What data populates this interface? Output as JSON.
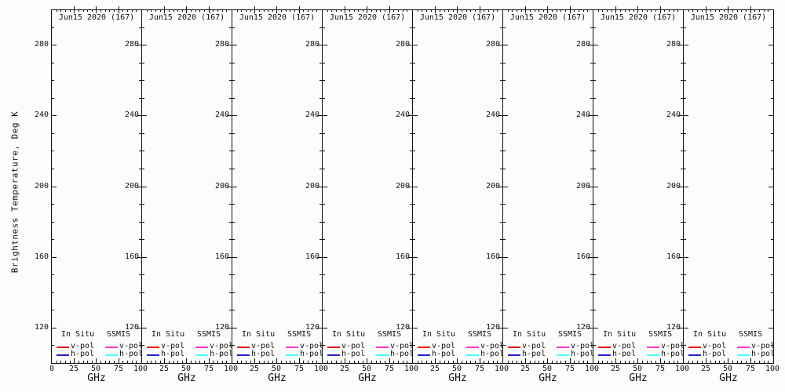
{
  "background": "#fcfcfa",
  "ylabel": "Brightness Temperature, Deg K",
  "chart_data": [
    {
      "type": "line",
      "title": "Jun15 2020 (167)",
      "xlabel": "GHz",
      "xlim": [
        0,
        100
      ],
      "ylim": [
        100,
        300
      ],
      "xticks": [
        0,
        25,
        50,
        75,
        100
      ],
      "yticks": [
        120,
        160,
        200,
        240,
        280
      ],
      "x_minor_step": 5,
      "y_minor_step": 10,
      "grid": false,
      "series": [],
      "legend": {
        "position": "bottom-inside",
        "columns": [
          {
            "header": "In Situ",
            "entries": [
              {
                "label": "v-pol",
                "color": "#ee1100"
              },
              {
                "label": "h-pol",
                "color": "#2222cc"
              }
            ]
          },
          {
            "header": "SSMIS",
            "entries": [
              {
                "label": "v-pol",
                "color": "#ff33cc"
              },
              {
                "label": "h-pol",
                "color": "#44ffff"
              }
            ]
          }
        ]
      }
    },
    {
      "type": "line",
      "title": "Jun15 2020 (167)",
      "xlabel": "GHz",
      "xlim": [
        0,
        100
      ],
      "ylim": [
        100,
        300
      ],
      "xticks": [
        0,
        25,
        50,
        75,
        100
      ],
      "yticks": [
        120,
        160,
        200,
        240,
        280
      ],
      "x_minor_step": 5,
      "y_minor_step": 10,
      "grid": false,
      "series": [],
      "legend": {
        "position": "bottom-inside",
        "columns": [
          {
            "header": "In Situ",
            "entries": [
              {
                "label": "v-pol",
                "color": "#ee1100"
              },
              {
                "label": "h-pol",
                "color": "#2222cc"
              }
            ]
          },
          {
            "header": "SSMIS",
            "entries": [
              {
                "label": "v-pol",
                "color": "#ff33cc"
              },
              {
                "label": "h-pol",
                "color": "#44ffff"
              }
            ]
          }
        ]
      }
    },
    {
      "type": "line",
      "title": "Jun15 2020 (167)",
      "xlabel": "GHz",
      "xlim": [
        0,
        100
      ],
      "ylim": [
        100,
        300
      ],
      "xticks": [
        0,
        25,
        50,
        75,
        100
      ],
      "yticks": [
        120,
        160,
        200,
        240,
        280
      ],
      "x_minor_step": 5,
      "y_minor_step": 10,
      "grid": false,
      "series": [],
      "legend": {
        "position": "bottom-inside",
        "columns": [
          {
            "header": "In Situ",
            "entries": [
              {
                "label": "v-pol",
                "color": "#ee1100"
              },
              {
                "label": "h-pol",
                "color": "#2222cc"
              }
            ]
          },
          {
            "header": "SSMIS",
            "entries": [
              {
                "label": "v-pol",
                "color": "#ff33cc"
              },
              {
                "label": "h-pol",
                "color": "#44ffff"
              }
            ]
          }
        ]
      }
    },
    {
      "type": "line",
      "title": "Jun15 2020 (167)",
      "xlabel": "GHz",
      "xlim": [
        0,
        100
      ],
      "ylim": [
        100,
        300
      ],
      "xticks": [
        0,
        25,
        50,
        75,
        100
      ],
      "yticks": [
        120,
        160,
        200,
        240,
        280
      ],
      "x_minor_step": 5,
      "y_minor_step": 10,
      "grid": false,
      "series": [],
      "legend": {
        "position": "bottom-inside",
        "columns": [
          {
            "header": "In Situ",
            "entries": [
              {
                "label": "v-pol",
                "color": "#ee1100"
              },
              {
                "label": "h-pol",
                "color": "#2222cc"
              }
            ]
          },
          {
            "header": "SSMIS",
            "entries": [
              {
                "label": "v-pol",
                "color": "#ff33cc"
              },
              {
                "label": "h-pol",
                "color": "#44ffff"
              }
            ]
          }
        ]
      }
    },
    {
      "type": "line",
      "title": "Jun15 2020 (167)",
      "xlabel": "GHz",
      "xlim": [
        0,
        100
      ],
      "ylim": [
        100,
        300
      ],
      "xticks": [
        0,
        25,
        50,
        75,
        100
      ],
      "yticks": [
        120,
        160,
        200,
        240,
        280
      ],
      "x_minor_step": 5,
      "y_minor_step": 10,
      "grid": false,
      "series": [],
      "legend": {
        "position": "bottom-inside",
        "columns": [
          {
            "header": "In Situ",
            "entries": [
              {
                "label": "v-pol",
                "color": "#ee1100"
              },
              {
                "label": "h-pol",
                "color": "#2222cc"
              }
            ]
          },
          {
            "header": "SSMIS",
            "entries": [
              {
                "label": "v-pol",
                "color": "#ff33cc"
              },
              {
                "label": "h-pol",
                "color": "#44ffff"
              }
            ]
          }
        ]
      }
    },
    {
      "type": "line",
      "title": "Jun15 2020 (167)",
      "xlabel": "GHz",
      "xlim": [
        0,
        100
      ],
      "ylim": [
        100,
        300
      ],
      "xticks": [
        0,
        25,
        50,
        75,
        100
      ],
      "yticks": [
        120,
        160,
        200,
        240,
        280
      ],
      "x_minor_step": 5,
      "y_minor_step": 10,
      "grid": false,
      "series": [],
      "legend": {
        "position": "bottom-inside",
        "columns": [
          {
            "header": "In Situ",
            "entries": [
              {
                "label": "v-pol",
                "color": "#ee1100"
              },
              {
                "label": "h-pol",
                "color": "#2222cc"
              }
            ]
          },
          {
            "header": "SSMIS",
            "entries": [
              {
                "label": "v-pol",
                "color": "#ff33cc"
              },
              {
                "label": "h-pol",
                "color": "#44ffff"
              }
            ]
          }
        ]
      }
    },
    {
      "type": "line",
      "title": "Jun15 2020 (167)",
      "xlabel": "GHz",
      "xlim": [
        0,
        100
      ],
      "ylim": [
        100,
        300
      ],
      "xticks": [
        0,
        25,
        50,
        75,
        100
      ],
      "yticks": [
        120,
        160,
        200,
        240,
        280
      ],
      "x_minor_step": 5,
      "y_minor_step": 10,
      "grid": false,
      "series": [],
      "legend": {
        "position": "bottom-inside",
        "columns": [
          {
            "header": "In Situ",
            "entries": [
              {
                "label": "v-pol",
                "color": "#ee1100"
              },
              {
                "label": "h-pol",
                "color": "#2222cc"
              }
            ]
          },
          {
            "header": "SSMIS",
            "entries": [
              {
                "label": "v-pol",
                "color": "#ff33cc"
              },
              {
                "label": "h-pol",
                "color": "#44ffff"
              }
            ]
          }
        ]
      }
    },
    {
      "type": "line",
      "title": "Jun15 2020 (167)",
      "xlabel": "GHz",
      "xlim": [
        0,
        100
      ],
      "ylim": [
        100,
        300
      ],
      "xticks": [
        0,
        25,
        50,
        75,
        100
      ],
      "yticks": [
        120,
        160,
        200,
        240,
        280
      ],
      "x_minor_step": 5,
      "y_minor_step": 10,
      "grid": false,
      "series": [],
      "legend": {
        "position": "bottom-inside",
        "columns": [
          {
            "header": "In Situ",
            "entries": [
              {
                "label": "v-pol",
                "color": "#ee1100"
              },
              {
                "label": "h-pol",
                "color": "#2222cc"
              }
            ]
          },
          {
            "header": "SSMIS",
            "entries": [
              {
                "label": "v-pol",
                "color": "#ff33cc"
              },
              {
                "label": "h-pol",
                "color": "#44ffff"
              }
            ]
          }
        ]
      }
    }
  ]
}
